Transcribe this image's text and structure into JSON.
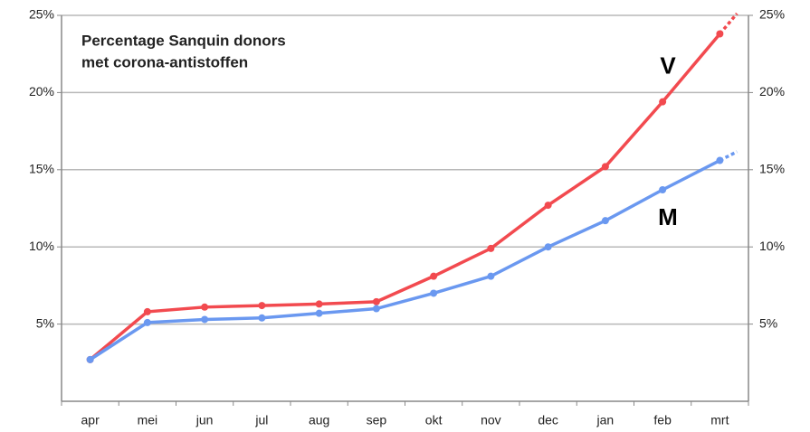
{
  "chart_data": {
    "type": "line",
    "title": [
      "Percentage Sanquin donors",
      "met corona-antistoffen"
    ],
    "categories": [
      "apr",
      "mei",
      "jun",
      "jul",
      "aug",
      "sep",
      "okt",
      "nov",
      "dec",
      "jan",
      "feb",
      "mrt"
    ],
    "series": [
      {
        "name": "V",
        "color": "#f24a4f",
        "values": [
          2.7,
          5.8,
          6.1,
          6.2,
          6.3,
          6.45,
          8.1,
          9.9,
          12.7,
          15.2,
          19.4,
          23.8
        ]
      },
      {
        "name": "M",
        "color": "#6a98f0",
        "values": [
          2.7,
          5.1,
          5.3,
          5.4,
          5.7,
          6.0,
          7.0,
          8.1,
          10.0,
          11.7,
          13.7,
          15.6
        ]
      }
    ],
    "ylim": [
      0,
      25
    ],
    "yticks": [
      {
        "value": 5,
        "label": "5%"
      },
      {
        "value": 10,
        "label": "10%"
      },
      {
        "value": 15,
        "label": "15%"
      },
      {
        "value": 20,
        "label": "20%"
      },
      {
        "value": 25,
        "label": "25%"
      }
    ],
    "y2lim": [
      0,
      25
    ],
    "y2ticks": [
      {
        "value": 5,
        "label": "5%"
      },
      {
        "value": 10,
        "label": "10%"
      },
      {
        "value": 15,
        "label": "15%"
      },
      {
        "value": 20,
        "label": "20%"
      },
      {
        "value": 25,
        "label": "25%"
      }
    ],
    "grid": true
  }
}
